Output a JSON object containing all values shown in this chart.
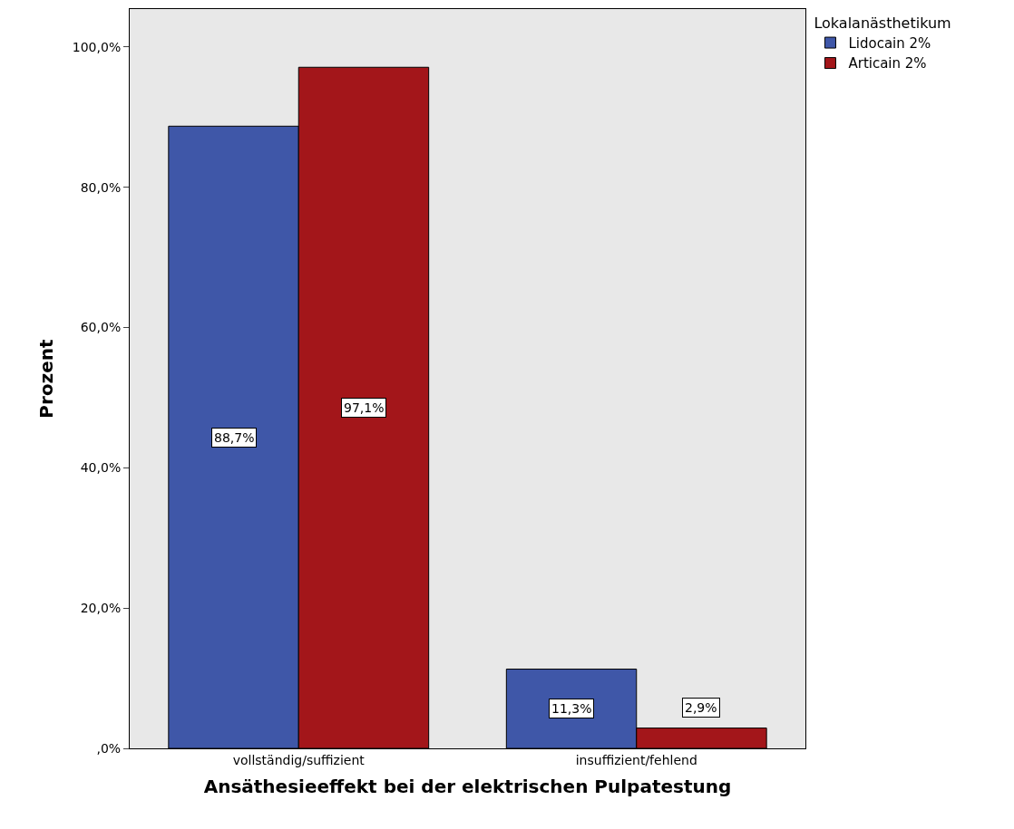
{
  "chart_data": {
    "type": "bar",
    "xlabel": "Ansäthesieeffekt bei der elektrischen Pulpatestung",
    "ylabel": "Prozent",
    "legend_title": "Lokalanästhetikum",
    "categories": [
      "vollständig/suffizient",
      "insuffizient/fehlend"
    ],
    "series": [
      {
        "name": "Lidocain 2%",
        "color": "#3f57a8",
        "values": [
          88.7,
          11.3
        ],
        "value_labels": [
          "88,7%",
          "11,3%"
        ]
      },
      {
        "name": "Articain 2%",
        "color": "#a3161a",
        "values": [
          97.1,
          2.9
        ],
        "value_labels": [
          "97,1%",
          "2,9%"
        ]
      }
    ],
    "ylim": [
      0,
      105.4
    ],
    "yticks": [
      {
        "value": 0,
        "label": ",0%"
      },
      {
        "value": 20,
        "label": "20,0%"
      },
      {
        "value": 40,
        "label": "40,0%"
      },
      {
        "value": 60,
        "label": "60,0%"
      },
      {
        "value": 80,
        "label": "80,0%"
      },
      {
        "value": 100,
        "label": "100,0%"
      }
    ],
    "grid": false,
    "legend": "top right"
  }
}
